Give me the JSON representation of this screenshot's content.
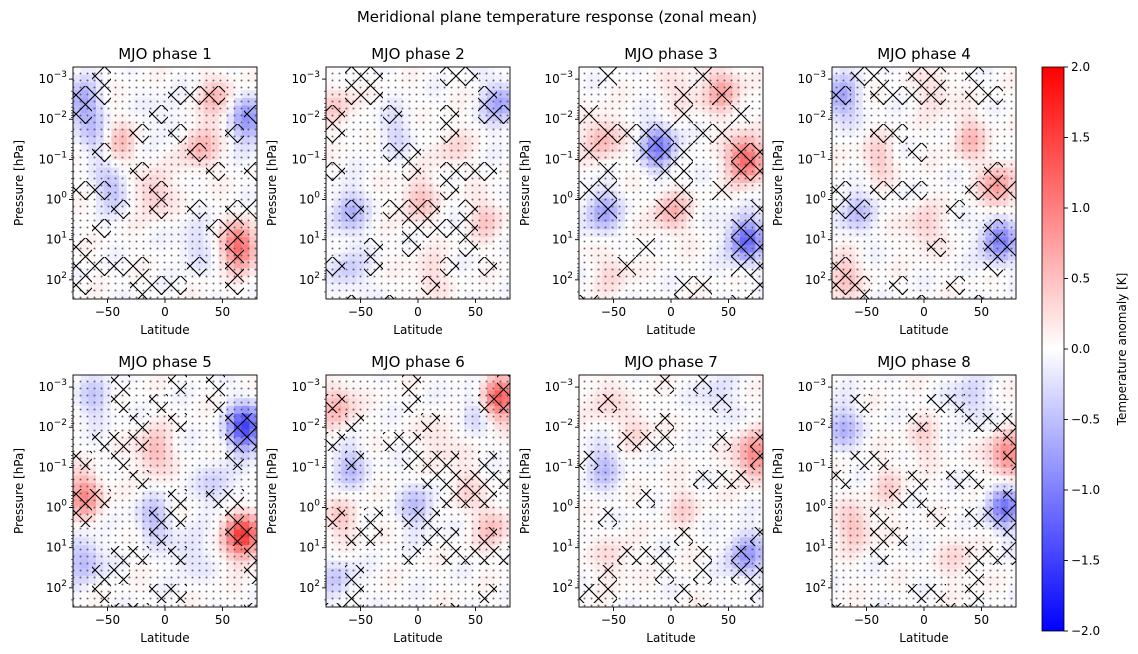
{
  "suptitle": "Meridional plane temperature response (zonal mean)",
  "colorbar": {
    "label": "Temperature anomaly [K]",
    "range": [
      -2.0,
      2.0
    ],
    "ticks": [
      "−2.0",
      "−1.5",
      "−1.0",
      "−0.5",
      "0.0",
      "0.5",
      "1.0",
      "1.5",
      "2.0"
    ],
    "colormap": "bwr",
    "color_min": "#0000ff",
    "color_mid": "#ffffff",
    "color_max": "#ff0000"
  },
  "chart_data": {
    "type": "heatmap",
    "panel_layout": "2 rows x 4 columns",
    "xlabel": "Latitude",
    "ylabel": "Pressure [hPa]",
    "xlim": [
      -80,
      80
    ],
    "x_ticks": [
      "−50",
      "0",
      "50"
    ],
    "y_scale": "log",
    "y_inverted": true,
    "ylim_hPa": [
      300,
      0.0005
    ],
    "y_ticks": [
      {
        "base": "10",
        "exp": "−3"
      },
      {
        "base": "10",
        "exp": "−2"
      },
      {
        "base": "10",
        "exp": "−1"
      },
      {
        "base": "10",
        "exp": "0"
      },
      {
        "base": "10",
        "exp": "1"
      },
      {
        "base": "10",
        "exp": "2"
      }
    ],
    "overlays": [
      "dots (stippling)",
      "cross-hatching"
    ],
    "panels": [
      {
        "title": "MJO phase 1",
        "blobs": [
          {
            "lat": -72,
            "p": 0.004,
            "v": -0.7
          },
          {
            "lat": -60,
            "p": 0.03,
            "v": -0.4
          },
          {
            "lat": -40,
            "p": 0.04,
            "v": 0.5
          },
          {
            "lat": 30,
            "p": 0.05,
            "v": 0.6
          },
          {
            "lat": 45,
            "p": 0.003,
            "v": 0.5
          },
          {
            "lat": 73,
            "p": 0.01,
            "v": -0.9
          },
          {
            "lat": -45,
            "p": 0.5,
            "v": -0.5
          },
          {
            "lat": -10,
            "p": 0.7,
            "v": 0.5
          },
          {
            "lat": 65,
            "p": 15,
            "v": 1.2
          },
          {
            "lat": 25,
            "p": 15,
            "v": -0.3
          },
          {
            "lat": 0,
            "p": 0.01,
            "v": -0.2
          }
        ]
      },
      {
        "title": "MJO phase 2",
        "blobs": [
          {
            "lat": -70,
            "p": 0.005,
            "v": 0.4
          },
          {
            "lat": 72,
            "p": 0.004,
            "v": -0.7
          },
          {
            "lat": -60,
            "p": 2,
            "v": -0.6
          },
          {
            "lat": 0,
            "p": 1,
            "v": 0.5
          },
          {
            "lat": 60,
            "p": 3,
            "v": 0.4
          },
          {
            "lat": 30,
            "p": 0.05,
            "v": 0.3
          },
          {
            "lat": -20,
            "p": 0.02,
            "v": -0.3
          },
          {
            "lat": 10,
            "p": 80,
            "v": 0.3
          },
          {
            "lat": -60,
            "p": 60,
            "v": -0.4
          }
        ]
      },
      {
        "title": "MJO phase 3",
        "blobs": [
          {
            "lat": -10,
            "p": 0.05,
            "v": -1.0
          },
          {
            "lat": 65,
            "p": 0.1,
            "v": 1.3
          },
          {
            "lat": 45,
            "p": 0.002,
            "v": 0.7
          },
          {
            "lat": -60,
            "p": 0.03,
            "v": 0.6
          },
          {
            "lat": -60,
            "p": 2,
            "v": -0.7
          },
          {
            "lat": 0,
            "p": 2,
            "v": 0.6
          },
          {
            "lat": 65,
            "p": 10,
            "v": -1.2
          },
          {
            "lat": -50,
            "p": 60,
            "v": 0.3
          },
          {
            "lat": 10,
            "p": 0.002,
            "v": 0.3
          }
        ]
      },
      {
        "title": "MJO phase 4",
        "blobs": [
          {
            "lat": -72,
            "p": 0.003,
            "v": -0.7
          },
          {
            "lat": 40,
            "p": 0.03,
            "v": 0.5
          },
          {
            "lat": 65,
            "p": 0.5,
            "v": 0.8
          },
          {
            "lat": 65,
            "p": 10,
            "v": -1.0
          },
          {
            "lat": -60,
            "p": 2,
            "v": -0.5
          },
          {
            "lat": -40,
            "p": 0.1,
            "v": 0.4
          },
          {
            "lat": 0,
            "p": 5,
            "v": 0.4
          },
          {
            "lat": -70,
            "p": 80,
            "v": 0.5
          },
          {
            "lat": 10,
            "p": 0.002,
            "v": 0.3
          }
        ]
      },
      {
        "title": "MJO phase 5",
        "blobs": [
          {
            "lat": 70,
            "p": 0.01,
            "v": -1.5
          },
          {
            "lat": 68,
            "p": 5,
            "v": 1.6
          },
          {
            "lat": -70,
            "p": 0.5,
            "v": 0.9
          },
          {
            "lat": -70,
            "p": 20,
            "v": -0.6
          },
          {
            "lat": -10,
            "p": 2,
            "v": -0.5
          },
          {
            "lat": -10,
            "p": 0.04,
            "v": 0.6
          },
          {
            "lat": 45,
            "p": 0.3,
            "v": -0.4
          },
          {
            "lat": 20,
            "p": 15,
            "v": -0.3
          },
          {
            "lat": -60,
            "p": 0.002,
            "v": -0.4
          }
        ]
      },
      {
        "title": "MJO phase 6",
        "blobs": [
          {
            "lat": 70,
            "p": 0.002,
            "v": 1.3
          },
          {
            "lat": -70,
            "p": 0.003,
            "v": 0.6
          },
          {
            "lat": -60,
            "p": 0.1,
            "v": -0.5
          },
          {
            "lat": 0,
            "p": 1,
            "v": -0.5
          },
          {
            "lat": 65,
            "p": 3,
            "v": 0.5
          },
          {
            "lat": -65,
            "p": 2,
            "v": 0.4
          },
          {
            "lat": 20,
            "p": 0.02,
            "v": 0.3
          },
          {
            "lat": -70,
            "p": 60,
            "v": -0.4
          },
          {
            "lat": 40,
            "p": 0.3,
            "v": 0.3
          },
          {
            "lat": 50,
            "p": 0.004,
            "v": -0.4
          }
        ]
      },
      {
        "title": "MJO phase 7",
        "blobs": [
          {
            "lat": 72,
            "p": 0.05,
            "v": 1.0
          },
          {
            "lat": 65,
            "p": 15,
            "v": -0.8
          },
          {
            "lat": -60,
            "p": 0.1,
            "v": -0.5
          },
          {
            "lat": -30,
            "p": 0.01,
            "v": 0.3
          },
          {
            "lat": 10,
            "p": 1,
            "v": 0.3
          },
          {
            "lat": -50,
            "p": 20,
            "v": 0.3
          },
          {
            "lat": 40,
            "p": 0.002,
            "v": -0.3
          },
          {
            "lat": -60,
            "p": 0.002,
            "v": 0.3
          }
        ]
      },
      {
        "title": "MJO phase 8",
        "blobs": [
          {
            "lat": 72,
            "p": 0.05,
            "v": 1.0
          },
          {
            "lat": 70,
            "p": 1,
            "v": -1.0
          },
          {
            "lat": -72,
            "p": 0.01,
            "v": -0.6
          },
          {
            "lat": -60,
            "p": 3,
            "v": 0.5
          },
          {
            "lat": 0,
            "p": 0.02,
            "v": 0.3
          },
          {
            "lat": 40,
            "p": 0.002,
            "v": -0.4
          },
          {
            "lat": 30,
            "p": 20,
            "v": 0.3
          },
          {
            "lat": -30,
            "p": 0.3,
            "v": 0.3
          }
        ]
      }
    ]
  }
}
